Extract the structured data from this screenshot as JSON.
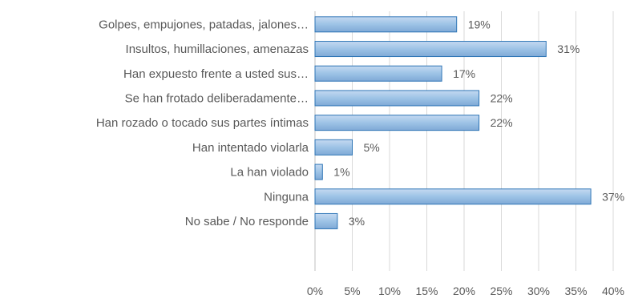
{
  "chart_data": {
    "type": "bar",
    "orientation": "horizontal",
    "title": "",
    "xlabel": "",
    "ylabel": "",
    "categories": [
      "Golpes, empujones, patadas, jalones…",
      "Insultos, humillaciones, amenazas",
      "Han expuesto frente a usted sus…",
      "Se han frotado deliberadamente…",
      "Han rozado o tocado sus partes íntimas",
      "Han intentado violarla",
      "La han violado",
      "Ninguna",
      "No sabe / No responde"
    ],
    "values": [
      19,
      31,
      17,
      22,
      22,
      5,
      1,
      37,
      3
    ],
    "data_labels": [
      "19%",
      "31%",
      "17%",
      "22%",
      "22%",
      "5%",
      "1%",
      "37%",
      "3%"
    ],
    "xlim": [
      0,
      40
    ],
    "x_ticks": [
      "0%",
      "5%",
      "10%",
      "15%",
      "20%",
      "25%",
      "30%",
      "35%",
      "40%"
    ],
    "grid": true,
    "legend": "none",
    "bar_color": "#9dc3e6",
    "bar_border_color": "#2e75b6"
  }
}
